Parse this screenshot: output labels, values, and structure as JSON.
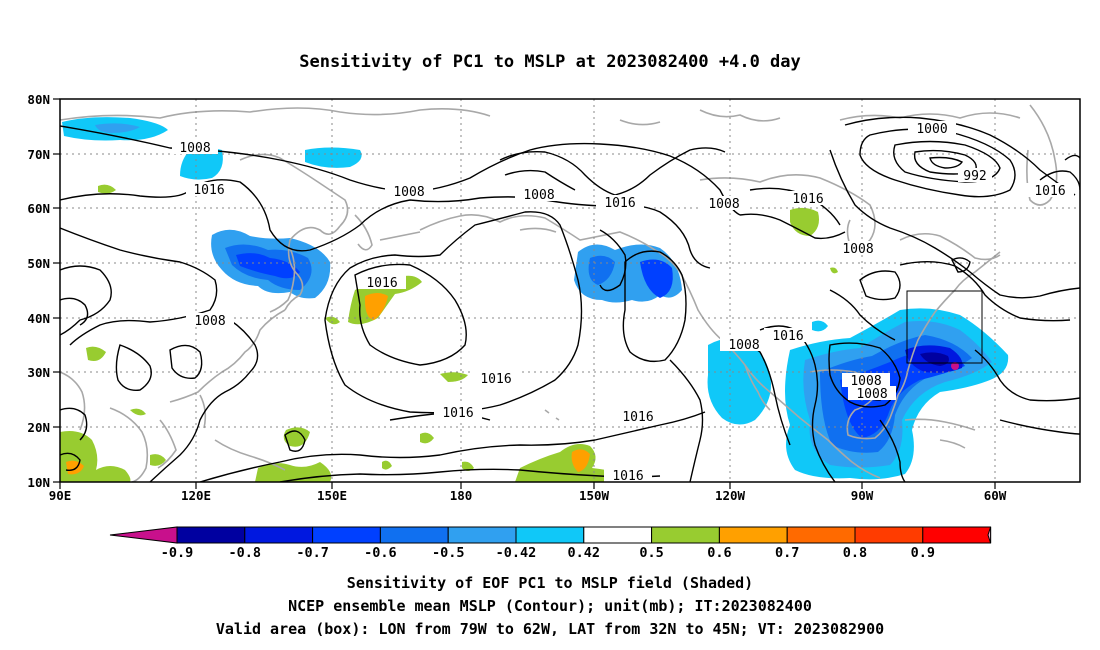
{
  "title": "Sensitivity of PC1 to MSLP at 2023082400 +4.0 day",
  "lat_labels": [
    "80N",
    "70N",
    "60N",
    "50N",
    "40N",
    "30N",
    "20N",
    "10N"
  ],
  "lon_labels": [
    "90E",
    "120E",
    "150E",
    "180",
    "150W",
    "120W",
    "90W",
    "60W"
  ],
  "contour_labels": [
    "1008",
    "1016",
    "1008",
    "1008",
    "1016",
    "1008",
    "1016",
    "1000",
    "992",
    "1016",
    "1008",
    "1016",
    "1008",
    "1016",
    "1008",
    "1016",
    "1016",
    "1016",
    "1016",
    "1008",
    "1008",
    "1008"
  ],
  "colorbar": {
    "labels": [
      "-0.9",
      "-0.8",
      "-0.7",
      "-0.6",
      "-0.5",
      "-0.42",
      "0.42",
      "0.5",
      "0.6",
      "0.7",
      "0.8",
      "0.9"
    ],
    "colors": [
      "#0000a0",
      "#0018e0",
      "#0040ff",
      "#1070f0",
      "#30a0f0",
      "#10c8f8",
      "#ffffff",
      "#98cc30",
      "#ffa000",
      "#ff6a00",
      "#ff3c00",
      "#ff0000"
    ],
    "low_end_color": "#c8108c",
    "high_end_color": "#f0a0c8"
  },
  "captions": [
    "Sensitivity of EOF PC1 to MSLP field (Shaded)",
    "NCEP ensemble mean MSLP (Contour); unit(mb); IT:2023082400",
    "Valid area (box): LON from 79W to 62W, LAT from 32N to 45N; VT: 2023082900"
  ]
}
